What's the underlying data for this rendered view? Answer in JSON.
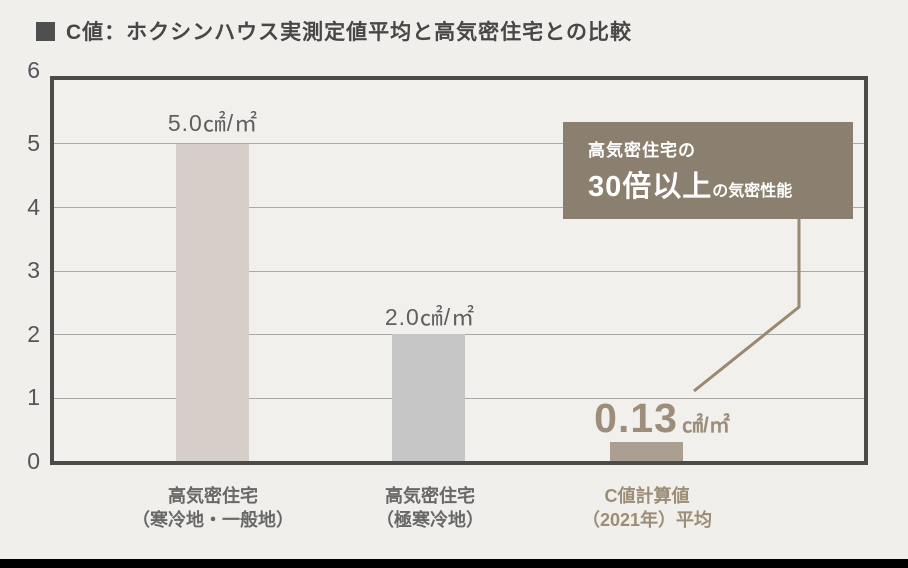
{
  "title": {
    "text": "C値：ホクシンハウス実測定値平均と高気密住宅との比較"
  },
  "y_axis": {
    "ticks": [
      "0",
      "1",
      "2",
      "3",
      "4",
      "5",
      "6"
    ]
  },
  "bars": [
    {
      "value_label": "5.0㎠/㎡",
      "axis_label_line1": "高気密住宅",
      "axis_label_line2": "（寒冷地・一般地）"
    },
    {
      "value_label": "2.0㎠/㎡",
      "axis_label_line1": "高気密住宅",
      "axis_label_line2": "（極寒冷地）"
    },
    {
      "value_label_big": "0.13",
      "value_label_unit": "㎠/㎡",
      "axis_label_line1": "C値計算値",
      "axis_label_line2": "（2021年）平均"
    }
  ],
  "callout": {
    "line1": "高気密住宅の",
    "line2_big": "30倍以上",
    "line2_small": "の気密性能"
  },
  "colors": {
    "background": "#f0efeb",
    "plot_border": "#4b4b49",
    "gridline": "#a9a9a7",
    "callout_bg": "#8b7f6f",
    "callout_text": "#ffffff",
    "accent_brown": "#9c8e7a",
    "title_text": "#474747",
    "axis_text": "#54555a",
    "bottom_bar": "#000000"
  },
  "chart_data": {
    "type": "bar",
    "title": "C値：ホクシンハウス実測定値平均と高気密住宅との比較",
    "categories": [
      "高気密住宅（寒冷地・一般地）",
      "高気密住宅（極寒冷地）",
      "C値計算値（2021年）平均"
    ],
    "values": [
      5.0,
      2.0,
      0.13
    ],
    "value_labels": [
      "5.0㎠/㎡",
      "2.0㎠/㎡",
      "0.13㎠/㎡"
    ],
    "unit": "㎠/㎡",
    "ylim": [
      0,
      6
    ],
    "yticks": [
      0,
      1,
      2,
      3,
      4,
      5,
      6
    ],
    "grid": true,
    "bar_colors": [
      "#d6cfc9",
      "#c6c6c6",
      "#ab9f92"
    ],
    "annotation": "高気密住宅の30倍以上の気密性能"
  }
}
